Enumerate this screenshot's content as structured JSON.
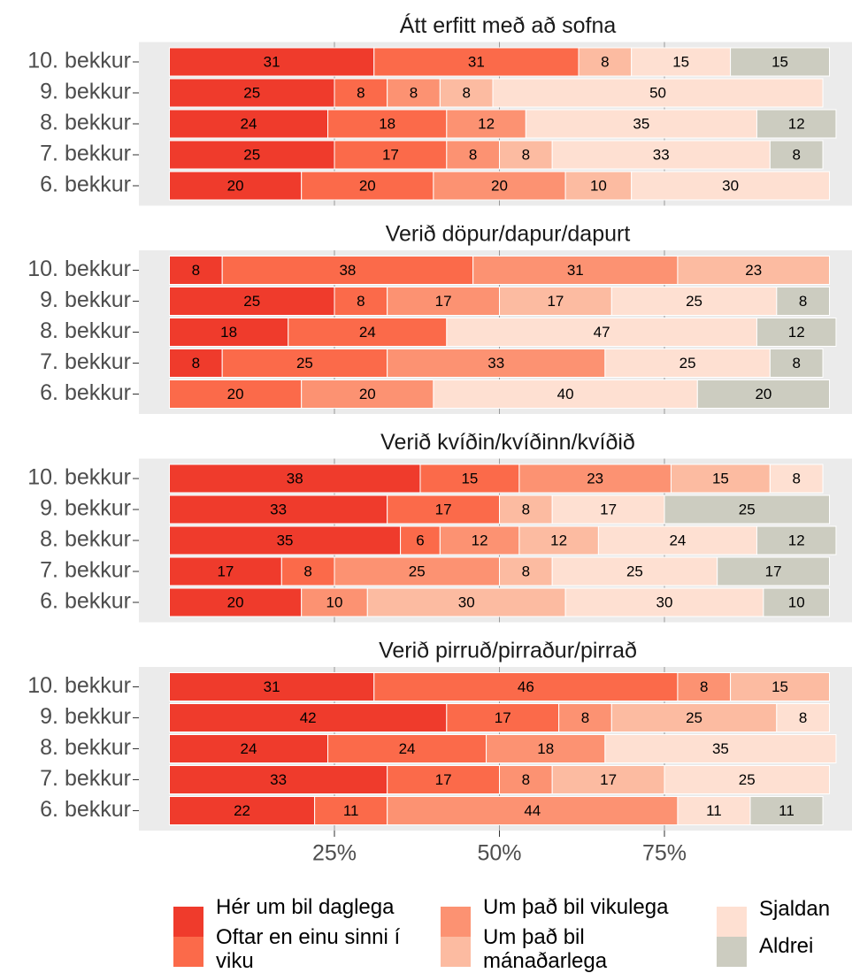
{
  "chart_data": {
    "type": "bar",
    "orientation": "horizontal",
    "stacked": true,
    "categories": [
      "10. bekkur",
      "9. bekkur",
      "8. bekkur",
      "7. bekkur",
      "6. bekkur"
    ],
    "xlim": [
      0,
      100
    ],
    "xticks": [
      {
        "value": 25,
        "label": "25%"
      },
      {
        "value": 50,
        "label": "50%"
      },
      {
        "value": 75,
        "label": "75%"
      }
    ],
    "grid": true,
    "legend": "bottom",
    "series": [
      {
        "name": "Hér um bil daglega",
        "color": "#EF3B2C"
      },
      {
        "name": "Oftar en einu sinni í viku",
        "color": "#FB6A4A"
      },
      {
        "name": "Um það bil vikulega",
        "color": "#FC9272"
      },
      {
        "name": "Um það bil mánaðarlega",
        "color": "#FCBBA1"
      },
      {
        "name": "Sjaldan",
        "color": "#FEE0D2"
      },
      {
        "name": "Aldrei",
        "color": "#CCCCC0"
      }
    ],
    "facets": [
      {
        "title": "Átt erfitt með að sofna",
        "values": [
          [
            31,
            25,
            24,
            25,
            20
          ],
          [
            31,
            8,
            18,
            17,
            20
          ],
          [
            null,
            8,
            12,
            8,
            20
          ],
          [
            8,
            8,
            null,
            8,
            10
          ],
          [
            15,
            50,
            35,
            33,
            30
          ],
          [
            15,
            null,
            12,
            8,
            null
          ]
        ]
      },
      {
        "title": "Verið döpur/dapur/dapurt",
        "values": [
          [
            8,
            25,
            18,
            8,
            null
          ],
          [
            38,
            8,
            24,
            25,
            20
          ],
          [
            31,
            17,
            null,
            33,
            20
          ],
          [
            23,
            17,
            null,
            null,
            null
          ],
          [
            null,
            25,
            47,
            25,
            40
          ],
          [
            null,
            8,
            12,
            8,
            20
          ]
        ]
      },
      {
        "title": "Verið kvíðin/kvíðinn/kvíðið",
        "values": [
          [
            38,
            33,
            35,
            17,
            20
          ],
          [
            15,
            17,
            6,
            8,
            null
          ],
          [
            23,
            null,
            12,
            25,
            10
          ],
          [
            15,
            8,
            12,
            8,
            30
          ],
          [
            8,
            17,
            24,
            25,
            30
          ],
          [
            null,
            25,
            12,
            17,
            10
          ]
        ]
      },
      {
        "title": "Verið pirruð/pirraður/pirrað",
        "values": [
          [
            31,
            42,
            24,
            33,
            22
          ],
          [
            46,
            17,
            24,
            17,
            11
          ],
          [
            8,
            8,
            18,
            8,
            44
          ],
          [
            15,
            25,
            null,
            17,
            null
          ],
          [
            null,
            8,
            35,
            25,
            11
          ],
          [
            null,
            null,
            null,
            null,
            11
          ]
        ]
      }
    ]
  }
}
